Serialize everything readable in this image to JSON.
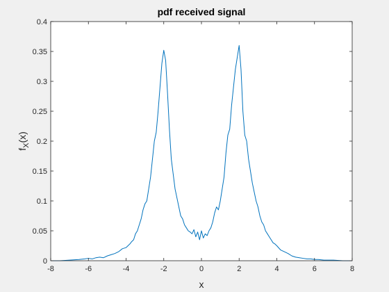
{
  "chart_data": {
    "type": "line",
    "title": "pdf received signal",
    "xlabel": "x",
    "ylabel": {
      "base": "f",
      "sub": "X",
      "suffix": "(x)"
    },
    "xlim": [
      -8,
      8
    ],
    "ylim": [
      0,
      0.4
    ],
    "xticks": [
      -8,
      -6,
      -4,
      -2,
      0,
      2,
      4,
      6,
      8
    ],
    "xtick_labels": [
      "-8",
      "-6",
      "-4",
      "-2",
      "0",
      "2",
      "4",
      "6",
      "8"
    ],
    "yticks": [
      0,
      0.05,
      0.1,
      0.15,
      0.2,
      0.25,
      0.3,
      0.35,
      0.4
    ],
    "ytick_labels": [
      "0",
      "0.05",
      "0.1",
      "0.15",
      "0.2",
      "0.25",
      "0.3",
      "0.35",
      "0.4"
    ],
    "grid": false,
    "box": true,
    "colors": {
      "series": "#0072BD",
      "axes": "#262626",
      "plot_bg": "#ffffff",
      "figure_bg": "#f0f0f0"
    },
    "series": [
      {
        "x": [
          -8,
          -7.5,
          -7,
          -6.5,
          -6.2,
          -6,
          -5.8,
          -5.6,
          -5.4,
          -5.2,
          -5,
          -4.8,
          -4.6,
          -4.4,
          -4.2,
          -4,
          -3.9,
          -3.8,
          -3.7,
          -3.6,
          -3.5,
          -3.4,
          -3.3,
          -3.2,
          -3.1,
          -3,
          -2.9,
          -2.8,
          -2.7,
          -2.6,
          -2.5,
          -2.4,
          -2.3,
          -2.2,
          -2.1,
          -2,
          -1.9,
          -1.8,
          -1.7,
          -1.6,
          -1.5,
          -1.4,
          -1.3,
          -1.2,
          -1.1,
          -1,
          -0.9,
          -0.8,
          -0.7,
          -0.6,
          -0.5,
          -0.4,
          -0.3,
          -0.2,
          -0.1,
          0,
          0.1,
          0.2,
          0.3,
          0.4,
          0.5,
          0.6,
          0.7,
          0.8,
          0.9,
          1,
          1.1,
          1.2,
          1.3,
          1.4,
          1.5,
          1.6,
          1.7,
          1.8,
          1.9,
          2,
          2.1,
          2.2,
          2.3,
          2.4,
          2.5,
          2.6,
          2.7,
          2.8,
          2.9,
          3,
          3.1,
          3.2,
          3.3,
          3.4,
          3.5,
          3.6,
          3.7,
          3.8,
          3.9,
          4,
          4.2,
          4.4,
          4.6,
          4.8,
          5,
          5.2,
          5.4,
          5.6,
          5.8,
          6,
          6.2,
          6.5,
          7,
          7.5,
          8
        ],
        "y": [
          0,
          0,
          0.001,
          0.002,
          0.003,
          0.004,
          0.003,
          0.005,
          0.006,
          0.005,
          0.008,
          0.01,
          0.012,
          0.015,
          0.02,
          0.022,
          0.025,
          0.028,
          0.032,
          0.035,
          0.045,
          0.05,
          0.06,
          0.07,
          0.085,
          0.095,
          0.1,
          0.12,
          0.14,
          0.17,
          0.2,
          0.215,
          0.25,
          0.29,
          0.33,
          0.352,
          0.335,
          0.28,
          0.22,
          0.17,
          0.145,
          0.12,
          0.105,
          0.09,
          0.075,
          0.07,
          0.06,
          0.055,
          0.05,
          0.048,
          0.045,
          0.052,
          0.04,
          0.048,
          0.035,
          0.05,
          0.038,
          0.045,
          0.042,
          0.05,
          0.055,
          0.065,
          0.08,
          0.09,
          0.085,
          0.1,
          0.12,
          0.14,
          0.18,
          0.21,
          0.22,
          0.26,
          0.29,
          0.32,
          0.34,
          0.36,
          0.32,
          0.25,
          0.21,
          0.2,
          0.17,
          0.15,
          0.13,
          0.115,
          0.1,
          0.09,
          0.075,
          0.065,
          0.06,
          0.05,
          0.045,
          0.04,
          0.035,
          0.03,
          0.028,
          0.025,
          0.018,
          0.015,
          0.012,
          0.008,
          0.006,
          0.005,
          0.004,
          0.003,
          0.003,
          0.002,
          0.002,
          0.001,
          0.001,
          0,
          0
        ]
      }
    ]
  }
}
